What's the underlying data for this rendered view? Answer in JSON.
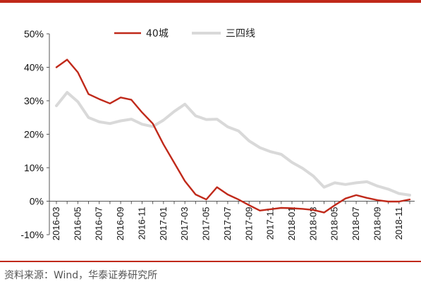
{
  "chart_data": {
    "type": "line",
    "x": [
      "2016-03",
      "2016-04",
      "2016-05",
      "2016-06",
      "2016-07",
      "2016-08",
      "2016-09",
      "2016-10",
      "2016-11",
      "2016-12",
      "2017-01",
      "2017-02",
      "2017-03",
      "2017-04",
      "2017-05",
      "2017-06",
      "2017-07",
      "2017-08",
      "2017-09",
      "2017-10",
      "2017-11",
      "2017-12",
      "2018-01",
      "2018-02",
      "2018-03",
      "2018-04",
      "2018-05",
      "2018-06",
      "2018-07",
      "2018-08",
      "2018-09",
      "2018-10",
      "2018-11",
      "2018-12"
    ],
    "x_tick_labels": [
      "2016-03",
      "2016-05",
      "2016-07",
      "2016-09",
      "2016-11",
      "2017-01",
      "2017-03",
      "2017-05",
      "2017-07",
      "2017-09",
      "2017-11",
      "2018-01",
      "2018-03",
      "2018-05",
      "2018-07",
      "2018-09",
      "2018-11"
    ],
    "y_tick_labels": [
      "50%",
      "40%",
      "30%",
      "20%",
      "10%",
      "0%",
      "-10%"
    ],
    "ylim": [
      -10,
      50
    ],
    "y_ticks": [
      50,
      40,
      30,
      20,
      10,
      0,
      -10
    ],
    "series": [
      {
        "name": "40城",
        "color": "#c0291a",
        "values": [
          40,
          42.3,
          38.5,
          32,
          30.5,
          29.2,
          31,
          30.3,
          26.5,
          23.2,
          17,
          11.5,
          6,
          2,
          0.5,
          4.2,
          2,
          0.5,
          -1.2,
          -2.8,
          -2.4,
          -2,
          -2.1,
          -2.3,
          -2.6,
          -3.4,
          -1.2,
          0.8,
          1.8,
          1,
          0.3,
          -0.1,
          -0.1,
          0.5
        ]
      },
      {
        "name": "三四线",
        "color": "#d9d9d9",
        "values": [
          28.5,
          32.5,
          29.7,
          25,
          23.7,
          23.2,
          24,
          24.5,
          23,
          22.3,
          24.2,
          26.8,
          29,
          25.5,
          24.4,
          24.5,
          22.2,
          21,
          18,
          16,
          14.8,
          14,
          11.6,
          9.8,
          7.5,
          4.2,
          5.5,
          5,
          5.5,
          5.8,
          4.5,
          3.6,
          2.3,
          1.8
        ]
      }
    ],
    "legend_position": "top",
    "grid": false
  },
  "source_text": "资料来源：Wind，华泰证券研究所"
}
